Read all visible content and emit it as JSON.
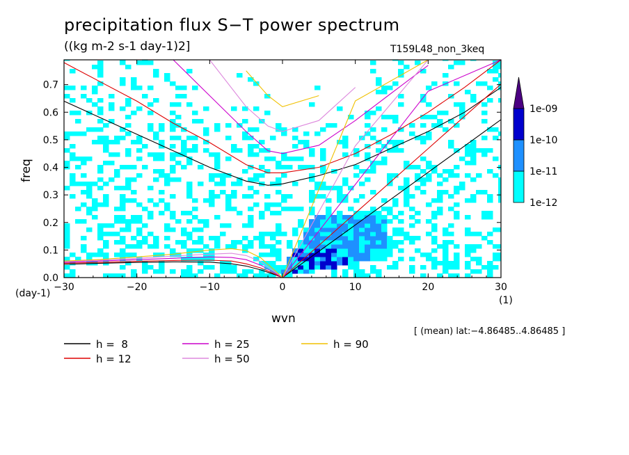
{
  "title": "precipitation flux S−T power spectrum",
  "units": "((kg m-2 s-1 day-1)2]",
  "case_name": "T159L48_non_3keq",
  "region_note": "[ (mean) lat:−4.86485..4.86485 ]",
  "colors": {
    "level_1e12": "#00ffff",
    "level_1e11": "#1e90ff",
    "level_1e10": "#0000cd",
    "level_1e09": "#4b0082",
    "h8": "#000000",
    "h12": "#dd0000",
    "h25": "#cc00cc",
    "h50": "#dd88dd",
    "h90": "#f0c000"
  },
  "chart_data": {
    "type": "heatmap",
    "title": "precipitation flux S−T power spectrum",
    "xlabel": "wvn",
    "ylabel": "freq",
    "x_unit": "(1)",
    "y_unit": "(day-1)",
    "xlim": [
      -30,
      30
    ],
    "ylim": [
      0,
      0.79
    ],
    "x_ticks": [
      -30,
      -20,
      -10,
      0,
      10,
      20,
      30
    ],
    "x_tick_labels": [
      "−30",
      "−20",
      "−10",
      "0",
      "10",
      "20",
      "30"
    ],
    "y_ticks": [
      0,
      0.1,
      0.2,
      0.3,
      0.4,
      0.5,
      0.6,
      0.7
    ],
    "y_tick_labels": [
      "0.0",
      "0.1",
      "0.2",
      "0.3",
      "0.4",
      "0.5",
      "0.6",
      "0.7"
    ],
    "colorbar": {
      "levels": [
        "1e-12",
        "1e-11",
        "1e-10",
        "1e-09"
      ],
      "colors": [
        "#00ffff",
        "#1e90ff",
        "#0000cd",
        "#4b0082"
      ]
    },
    "dispersion_curves": [
      {
        "name": "h =  8",
        "h": 8,
        "color": "#000000"
      },
      {
        "name": "h = 12",
        "h": 12,
        "color": "#dd0000"
      },
      {
        "name": "h = 25",
        "h": 25,
        "color": "#cc00cc"
      },
      {
        "name": "h = 50",
        "h": 50,
        "color": "#dd88dd"
      },
      {
        "name": "h = 90",
        "h": 90,
        "color": "#f0c000"
      }
    ],
    "curve_values": {
      "ig_n1": {
        "x": [
          -30,
          -25,
          -20,
          -15,
          -10,
          -5,
          -2,
          0,
          5,
          10,
          15,
          20,
          25,
          30
        ],
        "h8": [
          0.64,
          0.58,
          0.52,
          0.46,
          0.4,
          0.35,
          0.335,
          0.34,
          0.37,
          0.41,
          0.47,
          0.53,
          0.6,
          0.69
        ],
        "h12": [
          0.78,
          0.71,
          0.64,
          0.56,
          0.49,
          0.41,
          0.38,
          0.38,
          0.4,
          0.45,
          0.52,
          0.6,
          0.69,
          0.79
        ],
        "h25": [
          null,
          null,
          null,
          0.79,
          0.66,
          0.53,
          0.46,
          0.45,
          0.48,
          0.57,
          0.67,
          0.77,
          null,
          null
        ],
        "h50": [
          null,
          null,
          null,
          null,
          0.79,
          0.62,
          0.55,
          0.53,
          0.57,
          0.69,
          null,
          null,
          null,
          null
        ],
        "h90": [
          null,
          null,
          null,
          null,
          null,
          0.75,
          0.66,
          0.62,
          0.66,
          null,
          null,
          null,
          null,
          null
        ]
      },
      "kelvin": {
        "x": [
          0,
          10,
          20,
          30
        ],
        "h8": [
          0,
          0.191,
          0.382,
          0.573
        ],
        "h12": [
          0,
          0.234,
          0.468,
          0.702
        ],
        "h25": [
          0,
          0.338,
          0.676,
          0.79
        ],
        "h50": [
          0,
          0.478,
          0.79,
          0.79
        ],
        "h90": [
          0,
          0.641,
          0.79,
          0.79
        ]
      },
      "rossby_n1": {
        "x": [
          -30,
          -25,
          -20,
          -15,
          -10,
          -7,
          -5,
          -3,
          -1,
          0
        ],
        "h8": [
          0.048,
          0.052,
          0.055,
          0.057,
          0.056,
          0.05,
          0.042,
          0.028,
          0.01,
          0
        ],
        "h12": [
          0.052,
          0.055,
          0.059,
          0.062,
          0.063,
          0.06,
          0.05,
          0.035,
          0.012,
          0
        ],
        "h25": [
          0.055,
          0.06,
          0.065,
          0.07,
          0.075,
          0.073,
          0.065,
          0.045,
          0.016,
          0
        ],
        "h50": [
          0.058,
          0.063,
          0.07,
          0.078,
          0.085,
          0.088,
          0.08,
          0.058,
          0.02,
          0
        ],
        "h90": [
          0.06,
          0.066,
          0.075,
          0.085,
          0.1,
          0.105,
          0.098,
          0.072,
          0.025,
          0
        ]
      }
    },
    "legend_position": "bottom"
  }
}
